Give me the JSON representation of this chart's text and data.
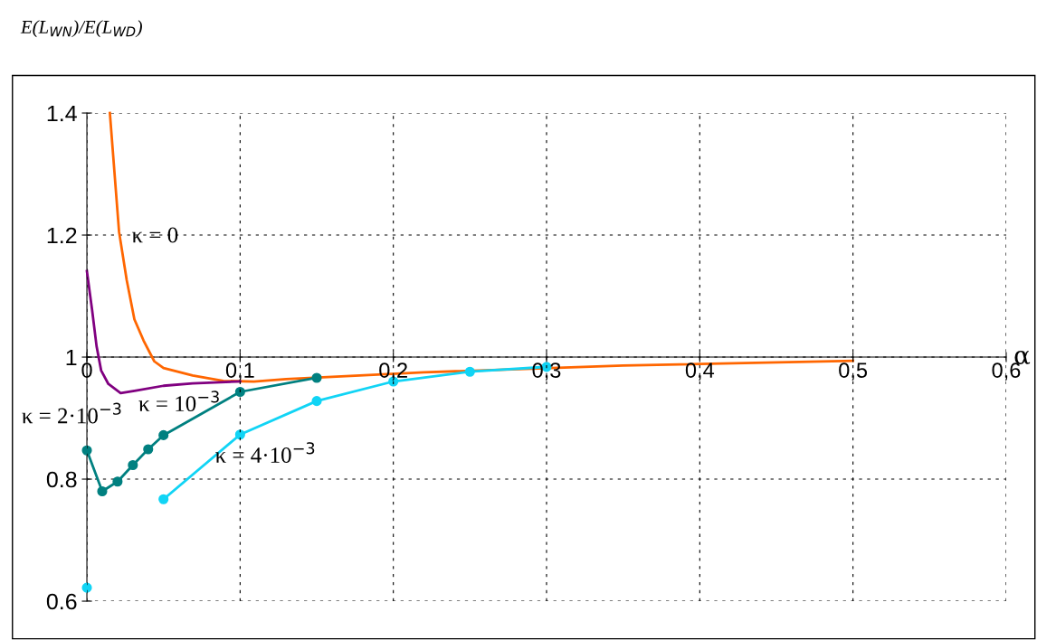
{
  "chart_data": {
    "type": "line",
    "ylabel": "E(L$_{WN}$)/E(L$_{WD}$)",
    "xlabel": "α",
    "xlim": [
      0,
      0.6
    ],
    "ylim": [
      0.6,
      1.4
    ],
    "xticks": [
      0,
      {
        "value": 0.1,
        "label": "0,1"
      },
      {
        "value": 0.2,
        "label": "0,2"
      },
      {
        "value": 0.3,
        "label": "0,3"
      },
      {
        "value": 0.4,
        "label": "0,4"
      },
      {
        "value": 0.5,
        "label": "0,5"
      },
      {
        "value": 0.6,
        "label": "0,6"
      }
    ],
    "yticks": [
      0.6,
      0.8,
      1,
      1.2,
      1.4
    ],
    "grid": true,
    "series": [
      {
        "name": "κ = 0",
        "color": "#ff6600",
        "marker": "none",
        "x": [
          0.015,
          0.021,
          0.026,
          0.031,
          0.037,
          0.044,
          0.05,
          0.069,
          0.089,
          0.109,
          0.13,
          0.22,
          0.35,
          0.5
        ],
        "values": [
          1.4,
          1.205,
          1.126,
          1.062,
          1.027,
          0.993,
          0.982,
          0.97,
          0.961,
          0.96,
          0.964,
          0.975,
          0.986,
          0.994
        ]
      },
      {
        "name": "κ = 10$^{−3}$",
        "color": "#800080",
        "marker": "none",
        "x": [
          0,
          0.0034,
          0.0063,
          0.0093,
          0.014,
          0.022,
          0.032,
          0.05,
          0.069,
          0.1
        ],
        "values": [
          1.141,
          1.077,
          1.018,
          0.978,
          0.956,
          0.941,
          0.945,
          0.953,
          0.957,
          0.96
        ]
      },
      {
        "name": "κ = 2·10$^{−3}$",
        "color": "#008080",
        "marker": "circle",
        "x": [
          0,
          0.01,
          0.02,
          0.03,
          0.04,
          0.05,
          0.1,
          0.15
        ],
        "values": [
          0.847,
          0.78,
          0.796,
          0.823,
          0.849,
          0.872,
          0.943,
          0.966
        ]
      },
      {
        "name": "κ = 4·10$^{−3}$",
        "color": "#11d4f5",
        "marker": "circle",
        "x": [
          0,
          0.025,
          0.05,
          0.1,
          0.15,
          0.2,
          0.25,
          0.3
        ],
        "values": [
          0.622,
          null,
          0.767,
          0.873,
          0.928,
          0.96,
          0.976,
          0.984
        ]
      }
    ]
  }
}
